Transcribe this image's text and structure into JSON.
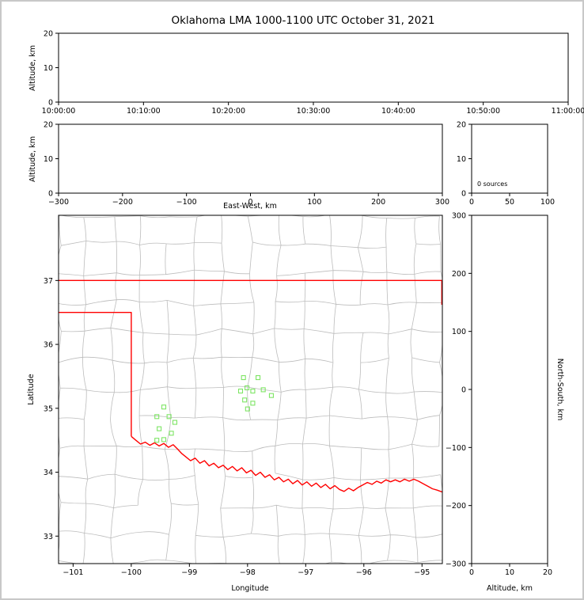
{
  "figure": {
    "title": "Oklahoma LMA 1000-1100 UTC October 31, 2021",
    "background_color": "#ffffff",
    "border_color": "#c8c8c8"
  },
  "colors": {
    "axis": "#000000",
    "county_lines": "#bcbcbc",
    "state_border": "#ff0000",
    "station_marker": "#7ee565"
  },
  "chart_data": [
    {
      "id": "time_height_panel",
      "type": "scatter",
      "ylabel": "Altitude, km",
      "x_tick_labels": [
        "10:00:00",
        "10:10:00",
        "10:20:00",
        "10:30:00",
        "10:40:00",
        "10:50:00",
        "11:00:00"
      ],
      "ylim": [
        0,
        20
      ],
      "yticks": [
        0,
        10,
        20
      ],
      "points": []
    },
    {
      "id": "east_west_height_panel",
      "type": "scatter",
      "xlabel": "East-West, km",
      "ylabel": "Altitude, km",
      "xlim": [
        -300,
        300
      ],
      "xticks": [
        -300,
        -200,
        -100,
        0,
        100,
        200,
        300
      ],
      "ylim": [
        0,
        20
      ],
      "yticks": [
        0,
        10,
        20
      ],
      "points": []
    },
    {
      "id": "altitude_histogram_panel",
      "type": "line",
      "annotation": "0 sources",
      "xlim": [
        0,
        100
      ],
      "xticks": [
        0,
        50,
        100
      ],
      "ylim": [
        0,
        20
      ],
      "yticks": [
        0,
        10,
        20
      ],
      "points": []
    },
    {
      "id": "plan_view_map_panel",
      "type": "scatter",
      "xlabel": "Longitude",
      "ylabel": "Latitude",
      "xlim": [
        -101.25,
        -94.65
      ],
      "xticks": [
        -101,
        -100,
        -99,
        -98,
        -97,
        -96,
        -95
      ],
      "ylim": [
        32.57,
        38.02
      ],
      "yticks": [
        33,
        34,
        35,
        36,
        37
      ],
      "stations": [
        [
          -98.07,
          35.48
        ],
        [
          -97.82,
          35.48
        ],
        [
          -98.01,
          35.32
        ],
        [
          -98.12,
          35.27
        ],
        [
          -97.91,
          35.27
        ],
        [
          -97.73,
          35.29
        ],
        [
          -97.59,
          35.2
        ],
        [
          -98.05,
          35.13
        ],
        [
          -97.91,
          35.08
        ],
        [
          -98.0,
          34.99
        ],
        [
          -99.44,
          35.02
        ],
        [
          -99.56,
          34.87
        ],
        [
          -99.35,
          34.87
        ],
        [
          -99.25,
          34.78
        ],
        [
          -99.52,
          34.68
        ],
        [
          -99.31,
          34.61
        ],
        [
          -99.44,
          34.51
        ],
        [
          -99.56,
          34.5
        ]
      ],
      "state_border": [
        [
          [
            -101.25,
            37.0
          ],
          [
            -94.65,
            37.0
          ]
        ],
        [
          [
            -101.25,
            36.5
          ],
          [
            -100.0,
            36.5
          ],
          [
            -100.0,
            34.56
          ]
        ],
        [
          [
            -94.66,
            37.0
          ],
          [
            -94.66,
            36.62
          ]
        ],
        [
          [
            -100.0,
            34.56
          ],
          [
            -99.92,
            34.5
          ],
          [
            -99.84,
            34.44
          ],
          [
            -99.76,
            34.47
          ],
          [
            -99.68,
            34.42
          ],
          [
            -99.6,
            34.46
          ],
          [
            -99.52,
            34.41
          ],
          [
            -99.44,
            34.45
          ],
          [
            -99.36,
            34.39
          ],
          [
            -99.28,
            34.43
          ],
          [
            -99.2,
            34.36
          ],
          [
            -99.13,
            34.29
          ],
          [
            -99.06,
            34.24
          ],
          [
            -98.98,
            34.18
          ],
          [
            -98.9,
            34.22
          ],
          [
            -98.82,
            34.14
          ],
          [
            -98.74,
            34.18
          ],
          [
            -98.66,
            34.1
          ],
          [
            -98.58,
            34.14
          ],
          [
            -98.5,
            34.07
          ],
          [
            -98.42,
            34.11
          ],
          [
            -98.34,
            34.04
          ],
          [
            -98.26,
            34.09
          ],
          [
            -98.18,
            34.02
          ],
          [
            -98.1,
            34.07
          ],
          [
            -98.02,
            33.99
          ],
          [
            -97.94,
            34.03
          ],
          [
            -97.86,
            33.95
          ],
          [
            -97.78,
            34.0
          ],
          [
            -97.7,
            33.92
          ],
          [
            -97.62,
            33.96
          ],
          [
            -97.54,
            33.88
          ],
          [
            -97.46,
            33.92
          ],
          [
            -97.38,
            33.85
          ],
          [
            -97.3,
            33.89
          ],
          [
            -97.22,
            33.82
          ],
          [
            -97.14,
            33.87
          ],
          [
            -97.06,
            33.8
          ],
          [
            -96.98,
            33.85
          ],
          [
            -96.9,
            33.78
          ],
          [
            -96.82,
            33.83
          ],
          [
            -96.74,
            33.76
          ],
          [
            -96.66,
            33.81
          ],
          [
            -96.58,
            33.74
          ],
          [
            -96.5,
            33.79
          ],
          [
            -96.42,
            33.73
          ],
          [
            -96.34,
            33.7
          ],
          [
            -96.26,
            33.75
          ],
          [
            -96.18,
            33.71
          ],
          [
            -96.1,
            33.76
          ],
          [
            -96.02,
            33.8
          ],
          [
            -95.94,
            33.84
          ],
          [
            -95.86,
            33.81
          ],
          [
            -95.78,
            33.86
          ],
          [
            -95.7,
            33.83
          ],
          [
            -95.62,
            33.88
          ],
          [
            -95.54,
            33.85
          ],
          [
            -95.46,
            33.88
          ],
          [
            -95.38,
            33.85
          ],
          [
            -95.3,
            33.89
          ],
          [
            -95.22,
            33.86
          ],
          [
            -95.14,
            33.89
          ],
          [
            -95.06,
            33.86
          ],
          [
            -94.98,
            33.82
          ],
          [
            -94.9,
            33.78
          ],
          [
            -94.82,
            33.74
          ],
          [
            -94.74,
            33.72
          ],
          [
            -94.65,
            33.69
          ]
        ]
      ],
      "points": []
    },
    {
      "id": "north_south_height_panel",
      "type": "scatter",
      "xlabel": "Altitude, km",
      "ylabel": "North-South, km",
      "xlim": [
        0,
        20
      ],
      "xticks": [
        0,
        10,
        20
      ],
      "ylim": [
        -300,
        300
      ],
      "yticks": [
        -300,
        -200,
        -100,
        0,
        100,
        200,
        300
      ],
      "points": []
    }
  ]
}
